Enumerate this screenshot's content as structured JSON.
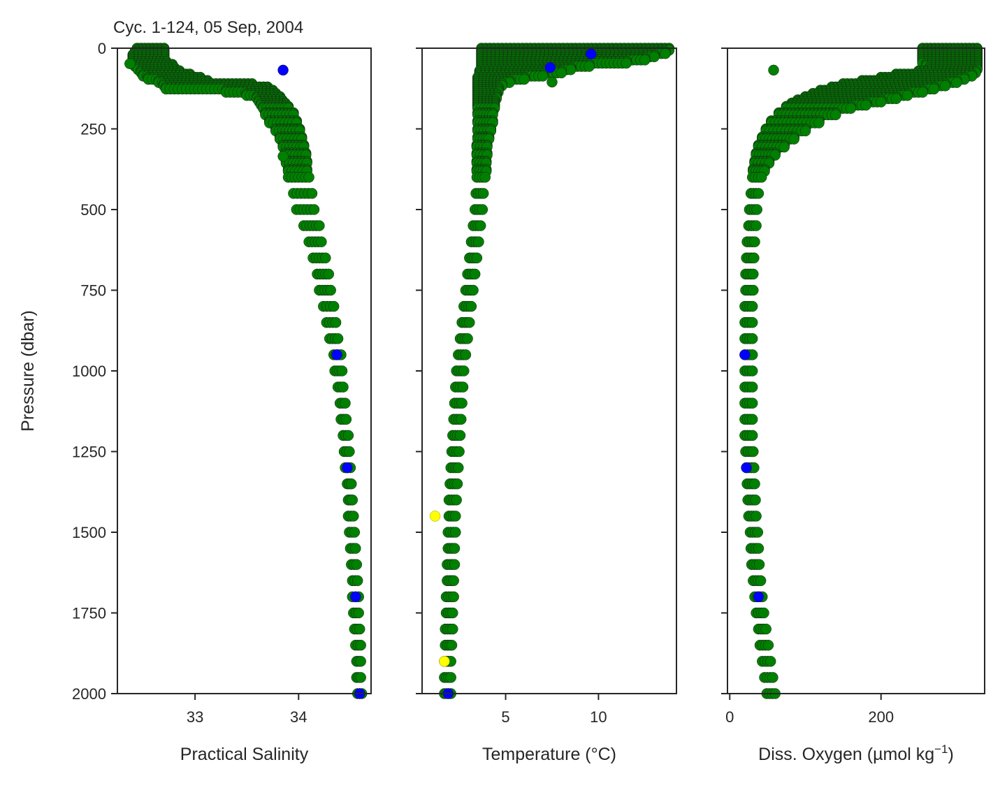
{
  "title": "Cyc. 1-124, 05 Sep, 2004",
  "y_axis": {
    "label": "Pressure (dbar)",
    "ticks": [
      0,
      250,
      500,
      750,
      1000,
      1250,
      1500,
      1750,
      2000
    ],
    "range": [
      2000,
      0
    ],
    "inverted": true
  },
  "colors": {
    "good": "#008000",
    "flag_blue": "#0000ff",
    "flag_yellow": "#ffff00",
    "edge": "#1a1a1a",
    "axes": "#262626"
  },
  "chart_data": [
    {
      "type": "scatter",
      "panel": "salinity",
      "xlabel": "Practical Salinity",
      "xlim": [
        32.25,
        34.7
      ],
      "ylim": [
        2000,
        0
      ],
      "xticks": [
        33,
        34
      ],
      "ylabel": "Pressure (dbar)",
      "profile": {
        "pressure": [
          0,
          10,
          20,
          30,
          40,
          50,
          60,
          70,
          80,
          90,
          100,
          110,
          120,
          130,
          140,
          150,
          160,
          170,
          180,
          200,
          225,
          250,
          275,
          300,
          325,
          350,
          375,
          400,
          450,
          500,
          550,
          600,
          650,
          700,
          750,
          800,
          850,
          900,
          950,
          1000,
          1050,
          1100,
          1150,
          1200,
          1250,
          1300,
          1350,
          1400,
          1450,
          1500,
          1550,
          1600,
          1650,
          1700,
          1750,
          1800,
          1850,
          1900,
          1950,
          2000
        ],
        "x_min": [
          32.44,
          32.42,
          32.4,
          32.4,
          32.4,
          32.42,
          32.45,
          32.48,
          32.5,
          32.55,
          32.65,
          32.7,
          32.72,
          33.3,
          33.5,
          33.6,
          33.62,
          33.64,
          33.66,
          33.68,
          33.72,
          33.78,
          33.82,
          33.85,
          33.87,
          33.88,
          33.9,
          33.9,
          33.95,
          33.98,
          34.05,
          34.1,
          34.14,
          34.18,
          34.2,
          34.24,
          34.27,
          34.3,
          34.34,
          34.35,
          34.38,
          34.4,
          34.41,
          34.43,
          34.44,
          34.45,
          34.47,
          34.48,
          34.48,
          34.49,
          34.5,
          34.51,
          34.52,
          34.52,
          34.53,
          34.54,
          34.55,
          34.56,
          34.56,
          34.57
        ],
        "x_max": [
          32.7,
          32.7,
          32.7,
          32.7,
          32.72,
          32.78,
          32.8,
          32.85,
          32.95,
          33.05,
          33.12,
          33.55,
          33.7,
          33.75,
          33.78,
          33.82,
          33.84,
          33.87,
          33.9,
          33.95,
          33.98,
          34.01,
          34.03,
          34.05,
          34.07,
          34.08,
          34.08,
          34.1,
          34.13,
          34.15,
          34.2,
          34.22,
          34.26,
          34.29,
          34.31,
          34.34,
          34.36,
          34.38,
          34.41,
          34.42,
          34.43,
          34.45,
          34.46,
          34.48,
          34.49,
          34.5,
          34.51,
          34.52,
          34.53,
          34.54,
          34.55,
          34.56,
          34.57,
          34.58,
          34.58,
          34.59,
          34.6,
          34.6,
          34.6,
          34.61
        ]
      },
      "outliers": [
        {
          "x": 32.37,
          "p": 48,
          "flag": "good"
        },
        {
          "x": 33.85,
          "p": 335,
          "flag": "good"
        },
        {
          "x": 33.85,
          "p": 68,
          "flag": "blue"
        },
        {
          "x": 34.37,
          "p": 950,
          "flag": "blue"
        },
        {
          "x": 34.47,
          "p": 1300,
          "flag": "blue"
        },
        {
          "x": 34.55,
          "p": 1700,
          "flag": "blue"
        },
        {
          "x": 34.59,
          "p": 2000,
          "flag": "blue"
        }
      ]
    },
    {
      "type": "scatter",
      "panel": "temperature",
      "xlabel": "Temperature (°C)",
      "xlim": [
        0.5,
        14.2
      ],
      "ylim": [
        2000,
        0
      ],
      "xticks": [
        5,
        10
      ],
      "profile": {
        "pressure": [
          0,
          10,
          20,
          30,
          40,
          50,
          60,
          70,
          80,
          90,
          100,
          110,
          120,
          130,
          140,
          150,
          160,
          170,
          180,
          200,
          225,
          250,
          275,
          300,
          325,
          350,
          375,
          400,
          450,
          500,
          550,
          600,
          650,
          700,
          750,
          800,
          850,
          900,
          950,
          1000,
          1050,
          1100,
          1150,
          1200,
          1250,
          1300,
          1350,
          1400,
          1450,
          1500,
          1550,
          1600,
          1650,
          1700,
          1750,
          1800,
          1850,
          1900,
          1950,
          2000
        ],
        "x_min": [
          3.7,
          3.7,
          3.7,
          3.7,
          3.7,
          3.7,
          3.7,
          3.6,
          3.6,
          3.5,
          3.5,
          3.5,
          3.5,
          3.5,
          3.5,
          3.5,
          3.5,
          3.5,
          3.5,
          3.5,
          3.5,
          3.5,
          3.5,
          3.45,
          3.45,
          3.45,
          3.45,
          3.45,
          3.4,
          3.35,
          3.25,
          3.15,
          3.05,
          2.95,
          2.85,
          2.75,
          2.65,
          2.55,
          2.45,
          2.35,
          2.3,
          2.25,
          2.2,
          2.15,
          2.1,
          2.05,
          2.0,
          1.95,
          1.95,
          1.9,
          1.9,
          1.85,
          1.85,
          1.8,
          1.8,
          1.75,
          1.75,
          1.7,
          1.7,
          1.7
        ],
        "x_max": [
          13.8,
          13.6,
          13.0,
          12.5,
          11.5,
          9.5,
          8.5,
          8.0,
          7.0,
          6.0,
          5.2,
          4.8,
          4.6,
          4.6,
          4.5,
          4.5,
          4.4,
          4.4,
          4.4,
          4.3,
          4.3,
          4.2,
          4.1,
          4.0,
          4.0,
          3.95,
          3.95,
          3.9,
          3.8,
          3.75,
          3.65,
          3.55,
          3.45,
          3.35,
          3.25,
          3.15,
          3.05,
          2.95,
          2.85,
          2.75,
          2.7,
          2.65,
          2.6,
          2.55,
          2.5,
          2.45,
          2.4,
          2.35,
          2.3,
          2.3,
          2.25,
          2.25,
          2.2,
          2.2,
          2.15,
          2.15,
          2.1,
          2.05,
          2.05,
          2.05
        ]
      },
      "outliers": [
        {
          "x": 9.6,
          "p": 18,
          "flag": "blue"
        },
        {
          "x": 7.4,
          "p": 60,
          "flag": "blue"
        },
        {
          "x": 7.5,
          "p": 105,
          "flag": "good"
        },
        {
          "x": 1.2,
          "p": 1450,
          "flag": "yellow"
        },
        {
          "x": 1.7,
          "p": 1900,
          "flag": "yellow"
        },
        {
          "x": 1.9,
          "p": 2000,
          "flag": "blue"
        }
      ]
    },
    {
      "type": "scatter",
      "panel": "oxygen",
      "xlabel": "Diss. Oxygen (µmol kg",
      "xlabel_sup": "−1",
      "xlabel_end": ")",
      "xlim": [
        -3,
        337
      ],
      "ylim": [
        2000,
        0
      ],
      "xticks": [
        0,
        200
      ],
      "profile": {
        "pressure": [
          0,
          10,
          20,
          30,
          40,
          50,
          60,
          70,
          80,
          90,
          100,
          110,
          120,
          130,
          140,
          150,
          160,
          170,
          180,
          200,
          225,
          250,
          275,
          300,
          325,
          350,
          375,
          400,
          450,
          500,
          550,
          600,
          650,
          700,
          750,
          800,
          850,
          900,
          950,
          1000,
          1050,
          1100,
          1150,
          1200,
          1250,
          1300,
          1350,
          1400,
          1450,
          1500,
          1550,
          1600,
          1650,
          1700,
          1750,
          1800,
          1850,
          1900,
          1950,
          2000
        ],
        "x_min": [
          255,
          255,
          255,
          255,
          255,
          260,
          265,
          250,
          220,
          200,
          175,
          150,
          135,
          120,
          110,
          100,
          90,
          82,
          75,
          65,
          55,
          48,
          43,
          38,
          35,
          33,
          31,
          30,
          28,
          26,
          25,
          23,
          22,
          21,
          21,
          20,
          20,
          20,
          20,
          20,
          20,
          20,
          20,
          20,
          21,
          22,
          23,
          24,
          25,
          27,
          28,
          29,
          31,
          33,
          35,
          38,
          40,
          43,
          46,
          49
        ],
        "x_max": [
          327,
          327,
          327,
          327,
          327,
          327,
          327,
          325,
          320,
          310,
          300,
          285,
          270,
          255,
          235,
          220,
          200,
          180,
          160,
          140,
          118,
          100,
          85,
          72,
          60,
          52,
          46,
          42,
          38,
          36,
          35,
          33,
          32,
          31,
          31,
          30,
          30,
          30,
          30,
          30,
          30,
          30,
          30,
          30,
          31,
          32,
          33,
          34,
          35,
          37,
          38,
          39,
          41,
          43,
          45,
          48,
          51,
          54,
          57,
          60
        ]
      },
      "outliers": [
        {
          "x": 58,
          "p": 68,
          "flag": "good"
        },
        {
          "x": 20,
          "p": 950,
          "flag": "blue"
        },
        {
          "x": 22,
          "p": 1300,
          "flag": "blue"
        },
        {
          "x": 38,
          "p": 1700,
          "flag": "blue"
        }
      ]
    }
  ]
}
